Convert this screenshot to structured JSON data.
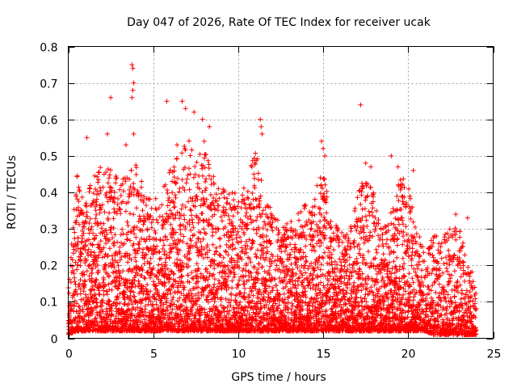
{
  "chart_data": {
    "type": "scatter",
    "title": "Day 047 of 2026, Rate Of TEC Index for receiver ucak",
    "xlabel": "GPS time / hours",
    "ylabel": "ROTI / TECUs",
    "xlim": [
      0,
      25
    ],
    "ylim": [
      0,
      0.8
    ],
    "xticks": [
      0,
      5,
      10,
      15,
      20,
      25
    ],
    "yticks": [
      0,
      0.1,
      0.2,
      0.3,
      0.4,
      0.5,
      0.6,
      0.7,
      0.8
    ],
    "xtick_labels": [
      "0",
      "5",
      "10",
      "15",
      "20",
      "25"
    ],
    "ytick_labels": [
      "0",
      "0.1",
      "0.2",
      "0.3",
      "0.4",
      "0.5",
      "0.6",
      "0.7",
      "0.8"
    ],
    "grid": true,
    "marker": "+",
    "color": "#ff0000",
    "series": [
      {
        "envelope": {
          "x": [
            0.0,
            0.5,
            1.0,
            1.5,
            2.0,
            2.5,
            3.0,
            3.5,
            4.0,
            4.5,
            5.0,
            5.5,
            6.0,
            6.5,
            7.0,
            7.5,
            8.0,
            8.5,
            9.0,
            9.5,
            10.0,
            10.5,
            11.0,
            11.5,
            12.0,
            12.5,
            13.0,
            13.5,
            14.0,
            14.5,
            15.0,
            15.5,
            16.0,
            16.5,
            17.0,
            17.5,
            18.0,
            18.5,
            19.0,
            19.5,
            20.0,
            20.5,
            21.0,
            21.5,
            22.0,
            22.5,
            23.0,
            23.5,
            24.0
          ],
          "y_min": [
            0.01,
            0.02,
            0.02,
            0.02,
            0.02,
            0.02,
            0.02,
            0.02,
            0.02,
            0.02,
            0.02,
            0.02,
            0.02,
            0.02,
            0.02,
            0.02,
            0.02,
            0.02,
            0.02,
            0.02,
            0.02,
            0.02,
            0.02,
            0.02,
            0.02,
            0.02,
            0.02,
            0.02,
            0.02,
            0.02,
            0.02,
            0.02,
            0.02,
            0.02,
            0.02,
            0.02,
            0.02,
            0.02,
            0.02,
            0.02,
            0.02,
            0.02,
            0.02,
            0.01,
            0.01,
            0.01,
            0.01,
            0.01,
            0.01
          ],
          "y_max": [
            0.15,
            0.45,
            0.42,
            0.45,
            0.48,
            0.47,
            0.43,
            0.45,
            0.48,
            0.4,
            0.38,
            0.4,
            0.47,
            0.5,
            0.55,
            0.52,
            0.52,
            0.45,
            0.42,
            0.4,
            0.4,
            0.42,
            0.55,
            0.4,
            0.35,
            0.32,
            0.32,
            0.35,
            0.38,
            0.4,
            0.48,
            0.32,
            0.3,
            0.28,
            0.4,
            0.45,
            0.4,
            0.3,
            0.35,
            0.45,
            0.42,
            0.3,
            0.25,
            0.28,
            0.3,
            0.3,
            0.32,
            0.22,
            0.15
          ],
          "density": [
            0.3,
            0.9,
            1.0,
            1.0,
            1.0,
            1.0,
            1.0,
            1.0,
            1.0,
            0.9,
            0.8,
            0.8,
            0.9,
            1.0,
            1.0,
            1.0,
            1.0,
            0.9,
            0.8,
            0.8,
            0.8,
            0.9,
            1.0,
            0.9,
            0.9,
            0.9,
            0.9,
            0.9,
            0.9,
            0.9,
            1.0,
            0.9,
            0.8,
            0.8,
            0.9,
            1.0,
            0.9,
            0.8,
            0.8,
            0.9,
            0.9,
            0.8,
            0.7,
            0.7,
            0.7,
            0.7,
            0.7,
            0.7,
            0.4
          ]
        },
        "outliers": {
          "x": [
            3.75,
            3.8,
            3.85,
            3.8,
            3.75,
            3.85,
            2.5,
            5.8,
            6.7,
            6.9,
            7.4,
            7.9,
            8.3,
            11.3,
            11.35,
            11.4,
            17.2,
            19.4,
            19.0,
            14.9,
            15.0,
            15.1,
            1.1,
            2.3,
            3.4,
            6.4,
            8.0,
            17.5,
            17.8,
            20.3,
            22.8,
            23.5
          ],
          "y": [
            0.75,
            0.74,
            0.7,
            0.68,
            0.66,
            0.56,
            0.66,
            0.65,
            0.65,
            0.63,
            0.62,
            0.6,
            0.58,
            0.6,
            0.58,
            0.56,
            0.64,
            0.47,
            0.5,
            0.54,
            0.52,
            0.5,
            0.55,
            0.56,
            0.53,
            0.53,
            0.54,
            0.48,
            0.47,
            0.46,
            0.34,
            0.33
          ]
        }
      }
    ]
  }
}
